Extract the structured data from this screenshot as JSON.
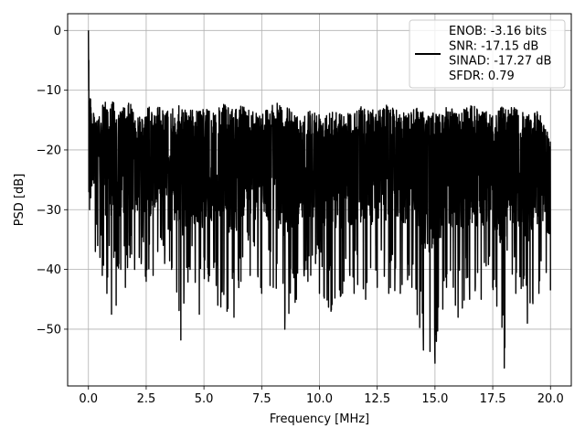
{
  "chart_data": {
    "type": "line",
    "title": "",
    "xlabel": "Frequency [MHz]",
    "ylabel": "PSD [dB]",
    "xlim": [
      -0.9,
      20.9
    ],
    "ylim": [
      -59.5,
      2.8
    ],
    "xticks": [
      0.0,
      2.5,
      5.0,
      7.5,
      10.0,
      12.5,
      15.0,
      17.5,
      20.0
    ],
    "xtick_labels": [
      "0.0",
      "2.5",
      "5.0",
      "7.5",
      "10.0",
      "12.5",
      "15.0",
      "17.5",
      "20.0"
    ],
    "yticks": [
      0,
      -10,
      -20,
      -30,
      -40,
      -50
    ],
    "ytick_labels": [
      "0",
      "−10",
      "−20",
      "−30",
      "−40",
      "−50"
    ],
    "grid": true,
    "legend_position": "top-right",
    "series_color": "#000000",
    "series": [
      {
        "name": "ENOB: -3.16 bits\nSNR: -17.15 dB\nSINAD: -17.27 dB\nSFDR: 0.79",
        "legend_lines": [
          "ENOB: -3.16 bits",
          "SNR: -17.15 dB",
          "SINAD: -17.27 dB",
          "SFDR: 0.79"
        ],
        "x": [
          0.0,
          0.02,
          0.05,
          0.1,
          0.15,
          0.2,
          0.3,
          0.4,
          0.5,
          0.6,
          0.8,
          0.9,
          1.0,
          1.1,
          1.2,
          1.4,
          1.6,
          1.8,
          2.0,
          2.2,
          2.5,
          2.8,
          3.0,
          3.3,
          3.6,
          4.0,
          4.4,
          4.8,
          5.2,
          5.6,
          6.0,
          6.3,
          6.6,
          7.0,
          7.5,
          8.0,
          8.5,
          9.0,
          9.5,
          10.0,
          10.5,
          11.0,
          11.5,
          12.0,
          12.5,
          13.0,
          13.5,
          14.0,
          14.5,
          15.0,
          15.5,
          16.0,
          16.5,
          17.0,
          17.5,
          18.0,
          18.5,
          19.0,
          19.5,
          20.0
        ],
        "upper": [
          0.0,
          -2.0,
          -8.0,
          -10.0,
          -15.0,
          -14.0,
          -13.0,
          -12.0,
          -15.5,
          -12.0,
          -11.0,
          -13.0,
          -12.0,
          -11.5,
          -15.0,
          -13.0,
          -12.5,
          -12.0,
          -13.5,
          -14.0,
          -12.5,
          -13.0,
          -12.5,
          -13.5,
          -13.0,
          -12.5,
          -13.0,
          -13.5,
          -12.5,
          -13.0,
          -12.0,
          -13.5,
          -12.5,
          -13.0,
          -13.5,
          -12.0,
          -12.5,
          -14.0,
          -13.0,
          -13.5,
          -12.5,
          -14.0,
          -13.0,
          -12.5,
          -13.5,
          -12.0,
          -14.0,
          -12.5,
          -13.0,
          -14.0,
          -12.5,
          -13.5,
          -12.5,
          -13.0,
          -14.0,
          -12.5,
          -13.0,
          -14.0,
          -13.5,
          -17.5
        ],
        "lower": [
          -18.0,
          -27.0,
          -30.0,
          -28.0,
          -26.0,
          -25.0,
          -37.0,
          -36.0,
          -38.0,
          -41.0,
          -44.0,
          -36.0,
          -47.5,
          -38.0,
          -46.0,
          -40.0,
          -43.0,
          -38.0,
          -40.0,
          -38.0,
          -42.0,
          -41.0,
          -37.0,
          -39.0,
          -40.0,
          -51.8,
          -40.0,
          -47.5,
          -42.0,
          -46.0,
          -47.0,
          -48.0,
          -42.0,
          -41.0,
          -44.0,
          -43.0,
          -50.0,
          -45.0,
          -42.0,
          -44.0,
          -47.0,
          -44.0,
          -44.0,
          -45.0,
          -43.0,
          -44.0,
          -44.0,
          -43.0,
          -53.5,
          -55.7,
          -43.0,
          -48.0,
          -45.0,
          -45.0,
          -43.0,
          -56.5,
          -44.0,
          -49.0,
          -44.0,
          -43.5
        ]
      }
    ]
  }
}
